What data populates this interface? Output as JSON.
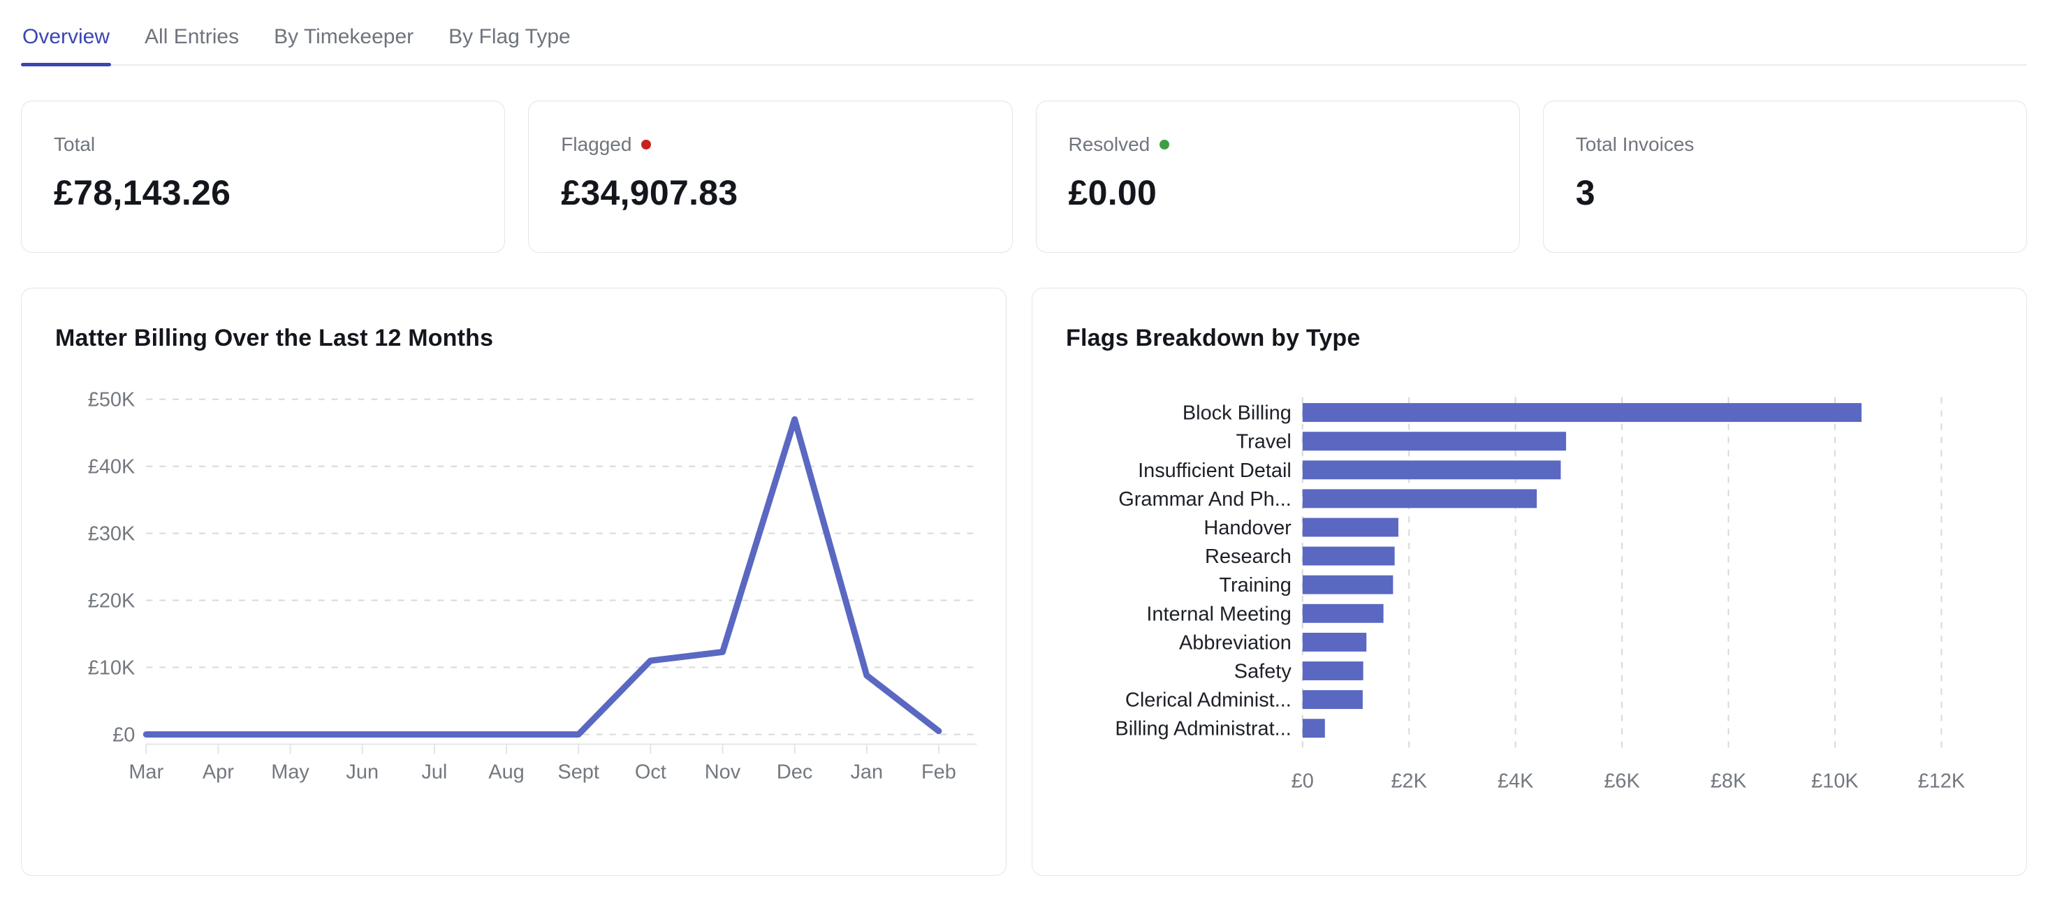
{
  "tabs": [
    {
      "label": "Overview",
      "active": true
    },
    {
      "label": "All Entries",
      "active": false
    },
    {
      "label": "By Timekeeper",
      "active": false
    },
    {
      "label": "By Flag Type",
      "active": false
    }
  ],
  "stats": [
    {
      "label": "Total",
      "value": "£78,143.26",
      "dot_color": null
    },
    {
      "label": "Flagged",
      "value": "£34,907.83",
      "dot_color": "#c5221f"
    },
    {
      "label": "Resolved",
      "value": "£0.00",
      "dot_color": "#3f9e45"
    },
    {
      "label": "Total Invoices",
      "value": "3",
      "dot_color": null
    }
  ],
  "colors": {
    "accent": "#5a68c2",
    "tab_active": "#3a46b0",
    "flag_red": "#c5221f",
    "resolved_green": "#3f9e45",
    "grid": "#d7d8dc",
    "axis": "#e4e5e9",
    "axis_text": "#73787f",
    "category_text": "#1d2027"
  },
  "chart_data": [
    {
      "type": "line",
      "title": "Matter Billing Over the Last 12 Months",
      "x": [
        "Mar",
        "Apr",
        "May",
        "Jun",
        "Jul",
        "Aug",
        "Sept",
        "Oct",
        "Nov",
        "Dec",
        "Jan",
        "Feb"
      ],
      "values": [
        0,
        0,
        0,
        0,
        0,
        0,
        0,
        11000,
        12300,
        47000,
        8800,
        500
      ],
      "y_ticks": [
        {
          "label": "£0",
          "value": 0
        },
        {
          "label": "£10K",
          "value": 10000
        },
        {
          "label": "£20K",
          "value": 20000
        },
        {
          "label": "£30K",
          "value": 30000
        },
        {
          "label": "£40K",
          "value": 40000
        },
        {
          "label": "£50K",
          "value": 50000
        }
      ],
      "ylim": [
        0,
        50000
      ],
      "grid": "horizontal-dashed",
      "legend": "none",
      "line_color": "#5a68c2"
    },
    {
      "type": "bar",
      "orientation": "horizontal",
      "title": "Flags Breakdown by Type",
      "categories": [
        "Block Billing",
        "Travel",
        "Insufficient Detail",
        "Grammar And Ph...",
        "Handover",
        "Research",
        "Training",
        "Internal Meeting",
        "Abbreviation",
        "Safety",
        "Clerical Administ...",
        "Billing Administrat..."
      ],
      "values": [
        10500,
        4950,
        4850,
        4400,
        1800,
        1730,
        1700,
        1520,
        1200,
        1140,
        1130,
        420
      ],
      "x_ticks": [
        {
          "label": "£0",
          "value": 0
        },
        {
          "label": "£2K",
          "value": 2000
        },
        {
          "label": "£4K",
          "value": 4000
        },
        {
          "label": "£6K",
          "value": 6000
        },
        {
          "label": "£8K",
          "value": 8000
        },
        {
          "label": "£10K",
          "value": 10000
        },
        {
          "label": "£12K",
          "value": 12000
        }
      ],
      "xlim": [
        0,
        12000
      ],
      "grid": "vertical-dashed",
      "legend": "none",
      "bar_color": "#5a68c2"
    }
  ]
}
